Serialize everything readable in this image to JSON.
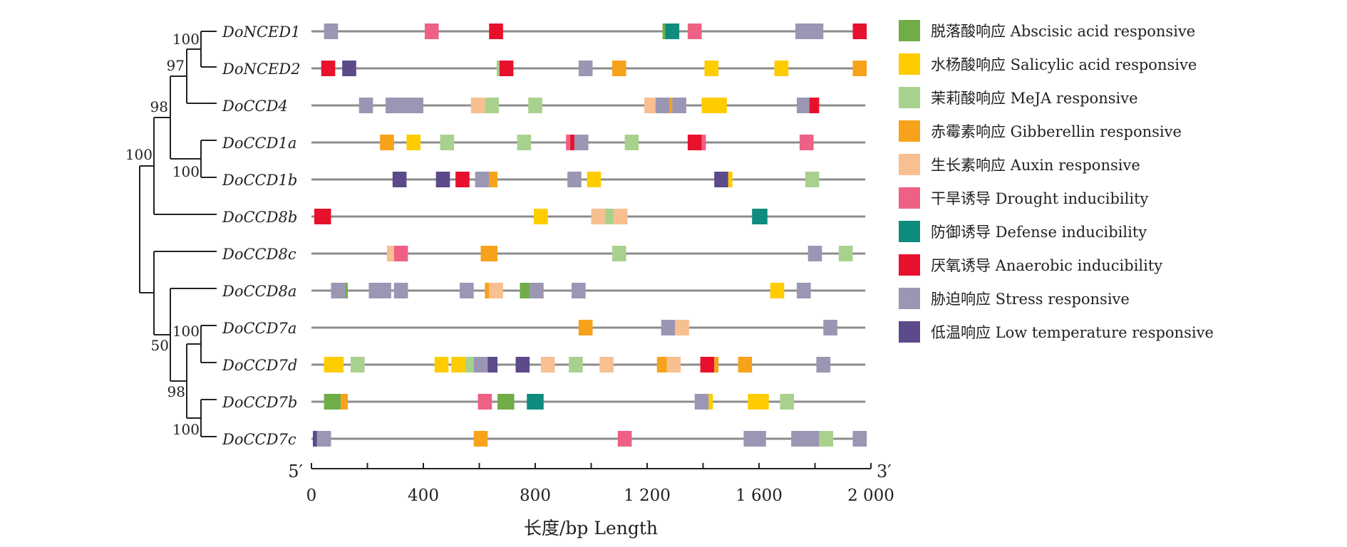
{
  "figure": {
    "axis": {
      "label": "长度/bp Length",
      "start_label": "5′",
      "end_label": "3′",
      "range": [
        0,
        2000
      ],
      "ticks": [
        {
          "value": 0,
          "label": "0"
        },
        {
          "value": 200,
          "label": ""
        },
        {
          "value": 400,
          "label": "400"
        },
        {
          "value": 600,
          "label": ""
        },
        {
          "value": 800,
          "label": "800"
        },
        {
          "value": 1000,
          "label": ""
        },
        {
          "value": 1200,
          "label": "1 200"
        },
        {
          "value": 1400,
          "label": ""
        },
        {
          "value": 1600,
          "label": "1 600"
        },
        {
          "value": 1800,
          "label": ""
        },
        {
          "value": 2000,
          "label": "2 000"
        }
      ]
    },
    "legend": [
      {
        "key": "aba",
        "label": "脱落酸响应 Abscisic acid responsive",
        "color": "#70ad47"
      },
      {
        "key": "sa",
        "label": "水杨酸响应 Salicylic acid responsive",
        "color": "#ffcc00"
      },
      {
        "key": "meja",
        "label": "茉莉酸响应 MeJA responsive",
        "color": "#a9d18e"
      },
      {
        "key": "ga",
        "label": "赤霉素响应 Gibberellin responsive",
        "color": "#f7a21b"
      },
      {
        "key": "auxin",
        "label": "生长素响应 Auxin responsive",
        "color": "#f8bf90"
      },
      {
        "key": "drought",
        "label": "干旱诱导 Drought inducibility",
        "color": "#ee6184"
      },
      {
        "key": "defense",
        "label": "防御诱导 Defense inducibility",
        "color": "#0f8c7d"
      },
      {
        "key": "anaerobic",
        "label": "厌氧诱导 Anaerobic inducibility",
        "color": "#e8112d"
      },
      {
        "key": "stress",
        "label": "胁迫响应 Stress responsive",
        "color": "#9a96b4"
      },
      {
        "key": "lowtemp",
        "label": "低温响应 Low temperature responsive",
        "color": "#5c4a8a"
      }
    ],
    "tree_support": [
      "100",
      "97",
      "98",
      "100",
      "100",
      "100",
      "50",
      "98",
      "100"
    ],
    "genes": [
      {
        "name": "DoNCED1",
        "length": 1980,
        "elements": [
          {
            "type": "stress",
            "start": 45,
            "end": 95
          },
          {
            "type": "drought",
            "start": 405,
            "end": 455
          },
          {
            "type": "anaerobic",
            "start": 635,
            "end": 685
          },
          {
            "type": "aba",
            "start": 1255,
            "end": 1265
          },
          {
            "type": "defense",
            "start": 1265,
            "end": 1315
          },
          {
            "type": "drought",
            "start": 1345,
            "end": 1395
          },
          {
            "type": "stress",
            "start": 1730,
            "end": 1830
          },
          {
            "type": "anaerobic",
            "start": 1935,
            "end": 1985
          }
        ]
      },
      {
        "name": "DoNCED2",
        "length": 1980,
        "elements": [
          {
            "type": "anaerobic",
            "start": 35,
            "end": 85
          },
          {
            "type": "lowtemp",
            "start": 110,
            "end": 160
          },
          {
            "type": "meja",
            "start": 662,
            "end": 672
          },
          {
            "type": "anaerobic",
            "start": 672,
            "end": 722
          },
          {
            "type": "stress",
            "start": 955,
            "end": 1005
          },
          {
            "type": "ga",
            "start": 1075,
            "end": 1125
          },
          {
            "type": "sa",
            "start": 1405,
            "end": 1455
          },
          {
            "type": "sa",
            "start": 1655,
            "end": 1705
          },
          {
            "type": "ga",
            "start": 1935,
            "end": 1985
          }
        ]
      },
      {
        "name": "DoCCD4",
        "length": 1980,
        "elements": [
          {
            "type": "stress",
            "start": 170,
            "end": 220
          },
          {
            "type": "stress",
            "start": 265,
            "end": 400
          },
          {
            "type": "auxin",
            "start": 570,
            "end": 620
          },
          {
            "type": "meja",
            "start": 620,
            "end": 670
          },
          {
            "type": "meja",
            "start": 775,
            "end": 825
          },
          {
            "type": "auxin",
            "start": 1190,
            "end": 1230
          },
          {
            "type": "stress",
            "start": 1230,
            "end": 1280
          },
          {
            "type": "ga",
            "start": 1280,
            "end": 1290
          },
          {
            "type": "stress",
            "start": 1290,
            "end": 1340
          },
          {
            "type": "sa",
            "start": 1395,
            "end": 1485
          },
          {
            "type": "stress",
            "start": 1735,
            "end": 1780
          },
          {
            "type": "anaerobic",
            "start": 1780,
            "end": 1815
          }
        ]
      },
      {
        "name": "DoCCD1a",
        "length": 1980,
        "elements": [
          {
            "type": "ga",
            "start": 245,
            "end": 295
          },
          {
            "type": "sa",
            "start": 340,
            "end": 390
          },
          {
            "type": "meja",
            "start": 460,
            "end": 510
          },
          {
            "type": "meja",
            "start": 735,
            "end": 785
          },
          {
            "type": "drought",
            "start": 910,
            "end": 925
          },
          {
            "type": "anaerobic",
            "start": 925,
            "end": 940
          },
          {
            "type": "stress",
            "start": 940,
            "end": 990
          },
          {
            "type": "meja",
            "start": 1120,
            "end": 1170
          },
          {
            "type": "anaerobic",
            "start": 1345,
            "end": 1395
          },
          {
            "type": "drought",
            "start": 1395,
            "end": 1410
          },
          {
            "type": "drought",
            "start": 1745,
            "end": 1795
          }
        ]
      },
      {
        "name": "DoCCD1b",
        "length": 1980,
        "elements": [
          {
            "type": "lowtemp",
            "start": 290,
            "end": 340
          },
          {
            "type": "lowtemp",
            "start": 445,
            "end": 495
          },
          {
            "type": "anaerobic",
            "start": 515,
            "end": 565
          },
          {
            "type": "stress",
            "start": 585,
            "end": 635
          },
          {
            "type": "ga",
            "start": 635,
            "end": 665
          },
          {
            "type": "stress",
            "start": 915,
            "end": 965
          },
          {
            "type": "sa",
            "start": 985,
            "end": 1035
          },
          {
            "type": "lowtemp",
            "start": 1440,
            "end": 1490
          },
          {
            "type": "sa",
            "start": 1490,
            "end": 1505
          },
          {
            "type": "meja",
            "start": 1765,
            "end": 1815
          }
        ]
      },
      {
        "name": "DoCCD8b",
        "length": 1980,
        "elements": [
          {
            "type": "anaerobic",
            "start": 10,
            "end": 70
          },
          {
            "type": "sa",
            "start": 795,
            "end": 845
          },
          {
            "type": "auxin",
            "start": 1000,
            "end": 1050
          },
          {
            "type": "meja",
            "start": 1050,
            "end": 1080
          },
          {
            "type": "auxin",
            "start": 1080,
            "end": 1130
          },
          {
            "type": "defense",
            "start": 1575,
            "end": 1630
          }
        ]
      },
      {
        "name": "DoCCD8c",
        "length": 1980,
        "elements": [
          {
            "type": "auxin",
            "start": 270,
            "end": 295
          },
          {
            "type": "drought",
            "start": 295,
            "end": 345
          },
          {
            "type": "ga",
            "start": 605,
            "end": 665
          },
          {
            "type": "meja",
            "start": 1075,
            "end": 1125
          },
          {
            "type": "stress",
            "start": 1775,
            "end": 1825
          },
          {
            "type": "meja",
            "start": 1885,
            "end": 1935
          }
        ]
      },
      {
        "name": "DoCCD8a",
        "length": 1980,
        "elements": [
          {
            "type": "stress",
            "start": 70,
            "end": 120
          },
          {
            "type": "aba",
            "start": 120,
            "end": 130
          },
          {
            "type": "stress",
            "start": 205,
            "end": 285
          },
          {
            "type": "stress",
            "start": 295,
            "end": 345
          },
          {
            "type": "stress",
            "start": 530,
            "end": 580
          },
          {
            "type": "ga",
            "start": 620,
            "end": 635
          },
          {
            "type": "auxin",
            "start": 635,
            "end": 685
          },
          {
            "type": "aba",
            "start": 745,
            "end": 780
          },
          {
            "type": "stress",
            "start": 780,
            "end": 830
          },
          {
            "type": "stress",
            "start": 930,
            "end": 980
          },
          {
            "type": "sa",
            "start": 1640,
            "end": 1690
          },
          {
            "type": "stress",
            "start": 1735,
            "end": 1785
          }
        ]
      },
      {
        "name": "DoCCD7a",
        "length": 1980,
        "elements": [
          {
            "type": "ga",
            "start": 955,
            "end": 1005
          },
          {
            "type": "stress",
            "start": 1250,
            "end": 1300
          },
          {
            "type": "auxin",
            "start": 1300,
            "end": 1350
          },
          {
            "type": "stress",
            "start": 1830,
            "end": 1880
          }
        ]
      },
      {
        "name": "DoCCD7d",
        "length": 1980,
        "elements": [
          {
            "type": "sa",
            "start": 45,
            "end": 115
          },
          {
            "type": "meja",
            "start": 140,
            "end": 190
          },
          {
            "type": "sa",
            "start": 440,
            "end": 490
          },
          {
            "type": "sa",
            "start": 500,
            "end": 550
          },
          {
            "type": "meja",
            "start": 550,
            "end": 580
          },
          {
            "type": "stress",
            "start": 580,
            "end": 630
          },
          {
            "type": "lowtemp",
            "start": 630,
            "end": 665
          },
          {
            "type": "lowtemp",
            "start": 730,
            "end": 780
          },
          {
            "type": "auxin",
            "start": 820,
            "end": 870
          },
          {
            "type": "meja",
            "start": 920,
            "end": 970
          },
          {
            "type": "auxin",
            "start": 1030,
            "end": 1080
          },
          {
            "type": "ga",
            "start": 1235,
            "end": 1270
          },
          {
            "type": "auxin",
            "start": 1270,
            "end": 1320
          },
          {
            "type": "anaerobic",
            "start": 1390,
            "end": 1440
          },
          {
            "type": "ga",
            "start": 1440,
            "end": 1455
          },
          {
            "type": "ga",
            "start": 1525,
            "end": 1575
          },
          {
            "type": "stress",
            "start": 1805,
            "end": 1855
          }
        ]
      },
      {
        "name": "DoCCD7b",
        "length": 1980,
        "elements": [
          {
            "type": "aba",
            "start": 45,
            "end": 105
          },
          {
            "type": "ga",
            "start": 105,
            "end": 130
          },
          {
            "type": "drought",
            "start": 595,
            "end": 645
          },
          {
            "type": "aba",
            "start": 665,
            "end": 725
          },
          {
            "type": "defense",
            "start": 770,
            "end": 830
          },
          {
            "type": "stress",
            "start": 1370,
            "end": 1420
          },
          {
            "type": "sa",
            "start": 1420,
            "end": 1435
          },
          {
            "type": "sa",
            "start": 1560,
            "end": 1635
          },
          {
            "type": "meja",
            "start": 1675,
            "end": 1725
          }
        ]
      },
      {
        "name": "DoCCD7c",
        "length": 1980,
        "elements": [
          {
            "type": "lowtemp",
            "start": 5,
            "end": 20
          },
          {
            "type": "stress",
            "start": 20,
            "end": 70
          },
          {
            "type": "ga",
            "start": 580,
            "end": 630
          },
          {
            "type": "drought",
            "start": 1095,
            "end": 1145
          },
          {
            "type": "stress",
            "start": 1545,
            "end": 1625
          },
          {
            "type": "stress",
            "start": 1715,
            "end": 1815
          },
          {
            "type": "meja",
            "start": 1815,
            "end": 1865
          },
          {
            "type": "stress",
            "start": 1935,
            "end": 1985
          }
        ]
      }
    ]
  }
}
